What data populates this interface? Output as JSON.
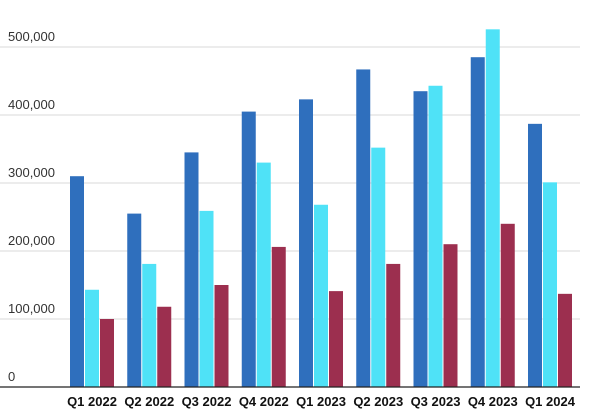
{
  "chart_data": {
    "type": "bar",
    "categories": [
      "Q1 2022",
      "Q2 2022",
      "Q3 2022",
      "Q4 2022",
      "Q1 2023",
      "Q2 2023",
      "Q3 2023",
      "Q4 2023",
      "Q1 2024"
    ],
    "series": [
      {
        "color": "#2f6fbd",
        "values": [
          310000,
          255000,
          345000,
          405000,
          423000,
          467000,
          435000,
          485000,
          387000
        ]
      },
      {
        "color": "#4fe2f7",
        "values": [
          143000,
          181000,
          259000,
          330000,
          268000,
          352000,
          443000,
          526000,
          301000
        ]
      },
      {
        "color": "#9c2f4f",
        "values": [
          100000,
          118000,
          150000,
          206000,
          141000,
          181000,
          210000,
          240000,
          137000
        ]
      }
    ],
    "yticks": [
      "0",
      "100,000",
      "200,000",
      "300,000",
      "400,000",
      "500,000"
    ],
    "ytick_values": [
      0,
      100000,
      200000,
      300000,
      400000,
      500000
    ],
    "ylim": [
      0,
      500000
    ],
    "grid": true,
    "legend": "none",
    "title": "",
    "xlabel": "",
    "ylabel": ""
  }
}
